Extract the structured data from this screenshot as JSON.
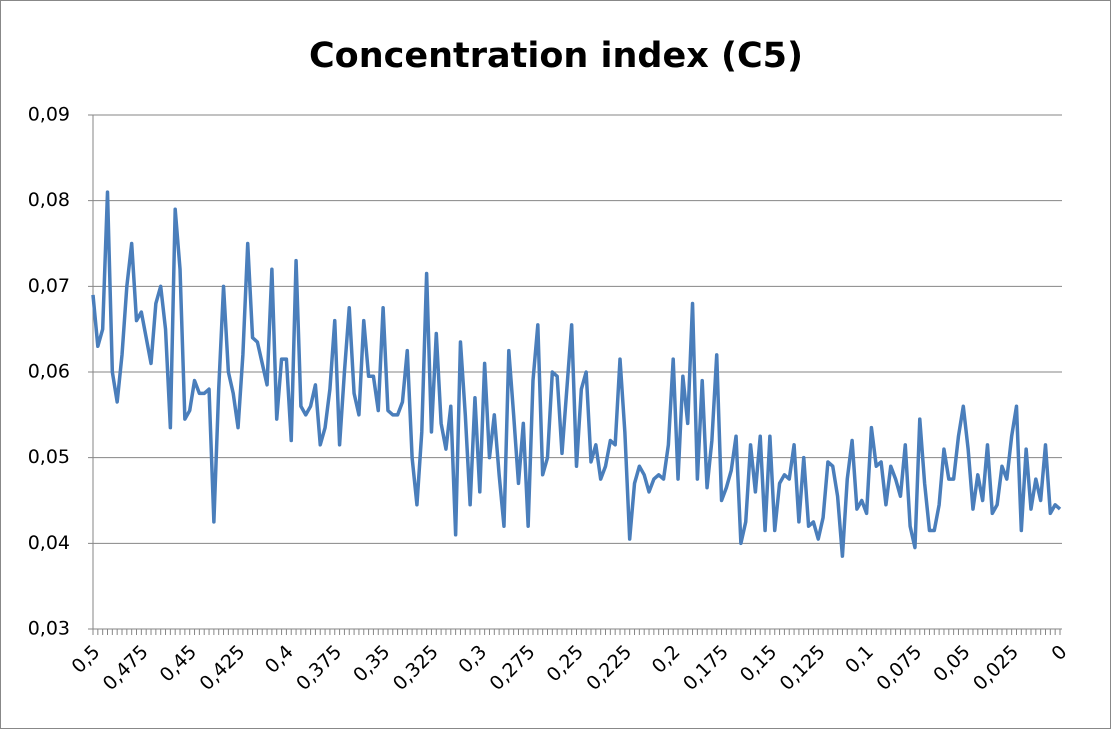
{
  "chart_data": {
    "type": "line",
    "title": "Concentration index (C5)",
    "categories": [
      "0,5",
      null,
      null,
      null,
      null,
      null,
      null,
      null,
      null,
      null,
      "0,475",
      null,
      null,
      null,
      null,
      null,
      null,
      null,
      null,
      null,
      "0,45",
      null,
      null,
      null,
      null,
      null,
      null,
      null,
      null,
      null,
      "0,425",
      null,
      null,
      null,
      null,
      null,
      null,
      null,
      null,
      null,
      "0,4",
      null,
      null,
      null,
      null,
      null,
      null,
      null,
      null,
      null,
      "0,375",
      null,
      null,
      null,
      null,
      null,
      null,
      null,
      null,
      null,
      "0,35",
      null,
      null,
      null,
      null,
      null,
      null,
      null,
      null,
      null,
      "0,325",
      null,
      null,
      null,
      null,
      null,
      null,
      null,
      null,
      null,
      "0,3",
      null,
      null,
      null,
      null,
      null,
      null,
      null,
      null,
      null,
      "0,275",
      null,
      null,
      null,
      null,
      null,
      null,
      null,
      null,
      null,
      "0,25",
      null,
      null,
      null,
      null,
      null,
      null,
      null,
      null,
      null,
      "0,225",
      null,
      null,
      null,
      null,
      null,
      null,
      null,
      null,
      null,
      "0,2",
      null,
      null,
      null,
      null,
      null,
      null,
      null,
      null,
      null,
      "0,175",
      null,
      null,
      null,
      null,
      null,
      null,
      null,
      null,
      null,
      "0,15",
      null,
      null,
      null,
      null,
      null,
      null,
      null,
      null,
      null,
      "0,125",
      null,
      null,
      null,
      null,
      null,
      null,
      null,
      null,
      null,
      "0,1",
      null,
      null,
      null,
      null,
      null,
      null,
      null,
      null,
      null,
      "0,075",
      null,
      null,
      null,
      null,
      null,
      null,
      null,
      null,
      null,
      "0,05",
      null,
      null,
      null,
      null,
      null,
      null,
      null,
      null,
      null,
      "0,025",
      null,
      null,
      null,
      null,
      null,
      null,
      null,
      null,
      null,
      "0"
    ],
    "values": [
      0.069,
      0.063,
      0.065,
      0.081,
      0.06,
      0.0565,
      0.062,
      0.07,
      0.075,
      0.066,
      0.067,
      0.064,
      0.061,
      0.068,
      0.07,
      0.065,
      0.0535,
      0.079,
      0.072,
      0.0545,
      0.0555,
      0.059,
      0.0575,
      0.0575,
      0.058,
      0.0425,
      0.058,
      0.07,
      0.06,
      0.0575,
      0.0535,
      0.062,
      0.075,
      0.064,
      0.0635,
      0.061,
      0.0585,
      0.072,
      0.0545,
      0.0615,
      0.0615,
      0.052,
      0.073,
      0.056,
      0.055,
      0.056,
      0.0585,
      0.0515,
      0.0535,
      0.058,
      0.066,
      0.0515,
      0.06,
      0.0675,
      0.0575,
      0.055,
      0.066,
      0.0595,
      0.0595,
      0.0555,
      0.0675,
      0.0555,
      0.055,
      0.055,
      0.0565,
      0.0625,
      0.05,
      0.0445,
      0.053,
      0.0715,
      0.053,
      0.0645,
      0.054,
      0.051,
      0.056,
      0.041,
      0.0635,
      0.055,
      0.0445,
      0.057,
      0.046,
      0.061,
      0.05,
      0.055,
      0.048,
      0.042,
      0.0625,
      0.055,
      0.047,
      0.054,
      0.042,
      0.059,
      0.0655,
      0.048,
      0.05,
      0.06,
      0.0595,
      0.0505,
      0.058,
      0.0655,
      0.049,
      0.058,
      0.06,
      0.0495,
      0.0515,
      0.0475,
      0.049,
      0.052,
      0.0515,
      0.0615,
      0.053,
      0.0405,
      0.047,
      0.049,
      0.048,
      0.046,
      0.0475,
      0.048,
      0.0475,
      0.0515,
      0.0615,
      0.0475,
      0.0595,
      0.054,
      0.068,
      0.0475,
      0.059,
      0.0465,
      0.052,
      0.062,
      0.045,
      0.0465,
      0.0485,
      0.0525,
      0.04,
      0.0425,
      0.0515,
      0.046,
      0.0525,
      0.0415,
      0.0525,
      0.0415,
      0.047,
      0.048,
      0.0475,
      0.0515,
      0.0425,
      0.05,
      0.042,
      0.0425,
      0.0405,
      0.043,
      0.0495,
      0.049,
      0.0455,
      0.0385,
      0.0475,
      0.052,
      0.044,
      0.045,
      0.0435,
      0.0535,
      0.049,
      0.0495,
      0.0445,
      0.049,
      0.0475,
      0.0455,
      0.0515,
      0.042,
      0.0395,
      0.0545,
      0.047,
      0.0415,
      0.0415,
      0.0445,
      0.051,
      0.0475,
      0.0475,
      0.0525,
      0.056,
      0.051,
      0.044,
      0.048,
      0.045,
      0.0515,
      0.0435,
      0.0445,
      0.049,
      0.0475,
      0.0525,
      0.056,
      0.0415,
      0.051,
      0.044,
      0.0475,
      0.045,
      0.0515,
      0.0435,
      0.0445,
      0.044
    ],
    "color": "#4a7ebb",
    "ylim": [
      0.03,
      0.09
    ],
    "yticks": [
      {
        "value": 0.03,
        "label": "0,03"
      },
      {
        "value": 0.04,
        "label": "0,04"
      },
      {
        "value": 0.05,
        "label": "0,05"
      },
      {
        "value": 0.06,
        "label": "0,06"
      },
      {
        "value": 0.07,
        "label": "0,07"
      },
      {
        "value": 0.08,
        "label": "0,08"
      },
      {
        "value": 0.09,
        "label": "0,09"
      }
    ],
    "grid": true
  }
}
